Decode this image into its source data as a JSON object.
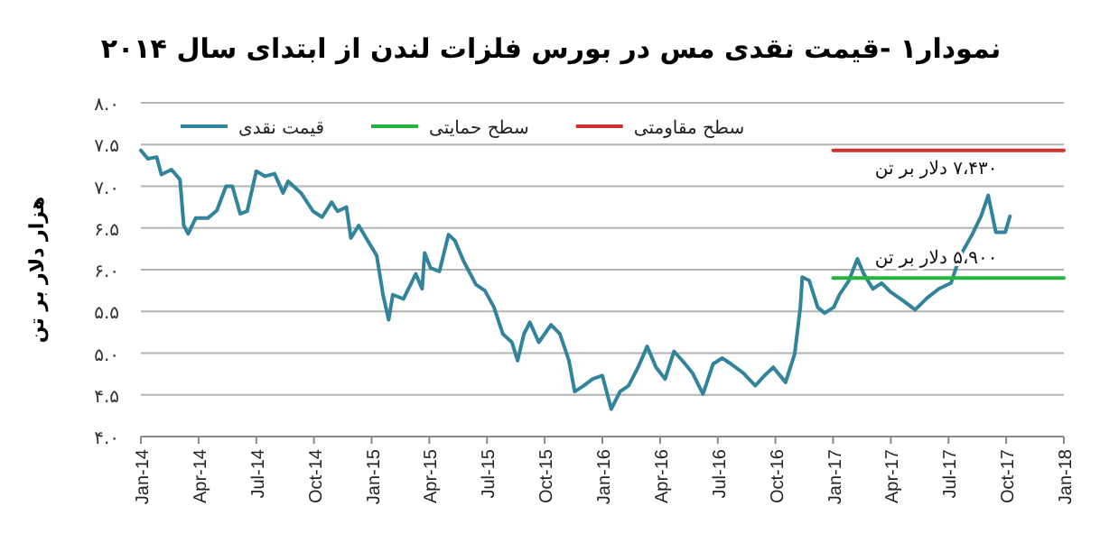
{
  "chart_data": {
    "type": "line",
    "title": "نمودار۱ -قیمت نقدی مس در بورس فلزات لندن از ابتدای سال ۲۰۱۴",
    "ylabel": "هزار دلار بر تن",
    "series": [
      {
        "name": "قیمت نقدی",
        "color": "#31849b",
        "x": [
          "2014-01-01",
          "2014-01-12",
          "2014-01-26",
          "2014-02-03",
          "2014-02-19",
          "2014-03-02",
          "2014-03-08",
          "2014-03-15",
          "2014-03-27",
          "2014-04-16",
          "2014-04-30",
          "2014-05-14",
          "2014-05-24",
          "2014-06-06",
          "2014-06-17",
          "2014-07-01",
          "2014-07-15",
          "2014-07-30",
          "2014-08-13",
          "2014-08-21",
          "2014-09-11",
          "2014-09-30",
          "2014-10-14",
          "2014-10-29",
          "2014-11-08",
          "2014-11-22",
          "2014-11-29",
          "2014-12-11",
          "2014-12-25",
          "2015-01-09",
          "2015-01-19",
          "2015-01-28",
          "2015-02-04",
          "2015-02-21",
          "2015-03-10",
          "2015-03-20",
          "2015-03-24",
          "2015-04-03",
          "2015-04-17",
          "2015-05-01",
          "2015-05-11",
          "2015-05-25",
          "2015-06-14",
          "2015-06-28",
          "2015-07-12",
          "2015-07-26",
          "2015-08-10",
          "2015-08-19",
          "2015-08-29",
          "2015-09-08",
          "2015-09-22",
          "2015-10-11",
          "2015-10-25",
          "2015-11-09",
          "2015-11-18",
          "2015-12-02",
          "2015-12-16",
          "2016-01-01",
          "2016-01-15",
          "2016-01-29",
          "2016-02-12",
          "2016-02-27",
          "2016-03-11",
          "2016-03-25",
          "2016-04-09",
          "2016-04-23",
          "2016-05-07",
          "2016-05-22",
          "2016-06-08",
          "2016-06-24",
          "2016-07-08",
          "2016-07-22",
          "2016-08-11",
          "2016-08-30",
          "2016-09-14",
          "2016-09-28",
          "2016-10-17",
          "2016-11-01",
          "2016-11-10",
          "2016-11-13",
          "2016-11-24",
          "2016-12-07",
          "2016-12-18",
          "2017-01-02",
          "2017-01-11",
          "2017-01-26",
          "2017-02-09",
          "2017-02-19",
          "2017-03-03",
          "2017-03-17",
          "2017-04-01",
          "2017-04-20",
          "2017-05-09",
          "2017-05-28",
          "2017-06-16",
          "2017-07-05",
          "2017-07-19",
          "2017-08-08",
          "2017-08-22",
          "2017-09-03",
          "2017-09-15",
          "2017-09-30",
          "2017-10-07"
        ],
        "values": [
          7.43,
          7.33,
          7.35,
          7.14,
          7.2,
          7.08,
          6.53,
          6.43,
          6.62,
          6.62,
          6.71,
          7.0,
          7.0,
          6.67,
          6.7,
          7.18,
          7.12,
          7.15,
          6.92,
          7.06,
          6.92,
          6.7,
          6.63,
          6.81,
          6.7,
          6.75,
          6.38,
          6.53,
          6.35,
          6.17,
          5.7,
          5.4,
          5.7,
          5.65,
          5.95,
          5.77,
          6.2,
          6.02,
          5.98,
          6.42,
          6.35,
          6.1,
          5.82,
          5.75,
          5.55,
          5.23,
          5.13,
          4.91,
          5.23,
          5.37,
          5.13,
          5.34,
          5.23,
          4.91,
          4.54,
          4.61,
          4.69,
          4.73,
          4.33,
          4.54,
          4.61,
          4.83,
          5.08,
          4.83,
          4.69,
          5.02,
          4.9,
          4.76,
          4.51,
          4.87,
          4.94,
          4.87,
          4.76,
          4.61,
          4.73,
          4.83,
          4.65,
          4.99,
          5.55,
          5.91,
          5.87,
          5.55,
          5.48,
          5.55,
          5.7,
          5.87,
          6.13,
          5.95,
          5.77,
          5.84,
          5.73,
          5.63,
          5.52,
          5.66,
          5.77,
          5.84,
          6.16,
          6.42,
          6.64,
          6.89,
          6.45,
          6.45,
          6.64
        ]
      },
      {
        "name": "سطح حمایتی",
        "color": "#22b43c",
        "x": [
          "2017-01-01",
          "2018-01-01"
        ],
        "values": [
          5.9,
          5.9
        ]
      },
      {
        "name": "سطح مقاومتی",
        "color": "#d0312d",
        "x": [
          "2017-01-01",
          "2018-01-01"
        ],
        "values": [
          7.43,
          7.43
        ]
      }
    ],
    "annotations": [
      {
        "text": "۷،۴۳۰ دلار بر تن",
        "x": "2017-06-12",
        "y": 7.43
      },
      {
        "text": "۵،۹۰۰ دلار بر تن",
        "x": "2017-06-12",
        "y": 5.9
      }
    ],
    "xlim": [
      "2014-01-01",
      "2018-01-01"
    ],
    "xticks": [
      {
        "value": "2014-01-01",
        "label": "Jan-14"
      },
      {
        "value": "2014-04-01",
        "label": "Apr-14"
      },
      {
        "value": "2014-07-01",
        "label": "Jul-14"
      },
      {
        "value": "2014-10-01",
        "label": "Oct-14"
      },
      {
        "value": "2015-01-01",
        "label": "Jan-15"
      },
      {
        "value": "2015-04-01",
        "label": "Apr-15"
      },
      {
        "value": "2015-07-01",
        "label": "Jul-15"
      },
      {
        "value": "2015-10-01",
        "label": "Oct-15"
      },
      {
        "value": "2016-01-01",
        "label": "Jan-16"
      },
      {
        "value": "2016-04-01",
        "label": "Apr-16"
      },
      {
        "value": "2016-07-01",
        "label": "Jul-16"
      },
      {
        "value": "2016-10-01",
        "label": "Oct-16"
      },
      {
        "value": "2017-01-01",
        "label": "Jan-17"
      },
      {
        "value": "2017-04-01",
        "label": "Apr-17"
      },
      {
        "value": "2017-07-01",
        "label": "Jul-17"
      },
      {
        "value": "2017-10-01",
        "label": "Oct-17"
      },
      {
        "value": "2018-01-01",
        "label": "Jan-18"
      }
    ],
    "ylim": [
      4.0,
      8.0
    ],
    "yticks": [
      {
        "value": 4.0,
        "label": "۴.۰"
      },
      {
        "value": 4.5,
        "label": "۴.۵"
      },
      {
        "value": 5.0,
        "label": "۵.۰"
      },
      {
        "value": 5.5,
        "label": "۵.۵"
      },
      {
        "value": 6.0,
        "label": "۶.۰"
      },
      {
        "value": 6.5,
        "label": "۶.۵"
      },
      {
        "value": 7.0,
        "label": "۷.۰"
      },
      {
        "value": 7.5,
        "label": "۷.۵"
      },
      {
        "value": 8.0,
        "label": "۸.۰"
      }
    ],
    "grid": "y",
    "legend": "top",
    "marker": "none",
    "line_style": "solid"
  }
}
